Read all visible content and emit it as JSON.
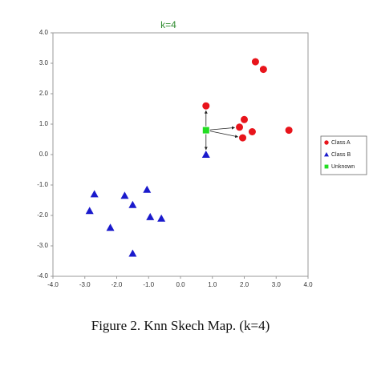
{
  "chart_data": {
    "type": "scatter",
    "title": "k=4",
    "title_color": "#2e8b2e",
    "caption": "Figure 2.    Knn Skech Map. (k=4)",
    "xlim": [
      -4,
      4
    ],
    "ylim": [
      -4,
      4
    ],
    "xticks": [
      {
        "value": -4,
        "label": "-4.0"
      },
      {
        "value": -3,
        "label": "-3.0"
      },
      {
        "value": -2,
        "label": "-2.0"
      },
      {
        "value": -1,
        "label": "-1.0"
      },
      {
        "value": 0,
        "label": "0.0"
      },
      {
        "value": 1,
        "label": "1.0"
      },
      {
        "value": 2,
        "label": "2.0"
      },
      {
        "value": 3,
        "label": "3.0"
      },
      {
        "value": 4,
        "label": "4.0"
      }
    ],
    "yticks": [
      {
        "value": -4,
        "label": "-4.0"
      },
      {
        "value": -3,
        "label": "-3.0"
      },
      {
        "value": -2,
        "label": "-2.0"
      },
      {
        "value": -1,
        "label": "-1.0"
      },
      {
        "value": 0,
        "label": "0.0"
      },
      {
        "value": 1,
        "label": "1.0"
      },
      {
        "value": 2,
        "label": "2.0"
      },
      {
        "value": 3,
        "label": "3.0"
      },
      {
        "value": 4,
        "label": "4.0"
      }
    ],
    "grid": false,
    "legend": "right",
    "series": [
      {
        "name": "Class A",
        "color": "#e8141b",
        "marker": "circle",
        "x": [
          0.8,
          2.35,
          2.6,
          2.0,
          1.85,
          2.25,
          1.95,
          3.4
        ],
        "values": [
          1.6,
          3.05,
          2.8,
          1.15,
          0.9,
          0.75,
          0.55,
          0.8
        ]
      },
      {
        "name": "Class B",
        "color": "#1a1acc",
        "marker": "triangle",
        "x": [
          -2.7,
          -2.85,
          -2.2,
          -1.75,
          -1.5,
          -1.05,
          -0.95,
          -0.6,
          -1.5,
          0.8
        ],
        "values": [
          -1.3,
          -1.85,
          -2.4,
          -1.35,
          -1.65,
          -1.15,
          -2.05,
          -2.1,
          -3.25,
          0.0
        ]
      },
      {
        "name": "Unknown",
        "color": "#22dd22",
        "marker": "square",
        "x": [
          0.8
        ],
        "values": [
          0.8
        ]
      }
    ]
  }
}
